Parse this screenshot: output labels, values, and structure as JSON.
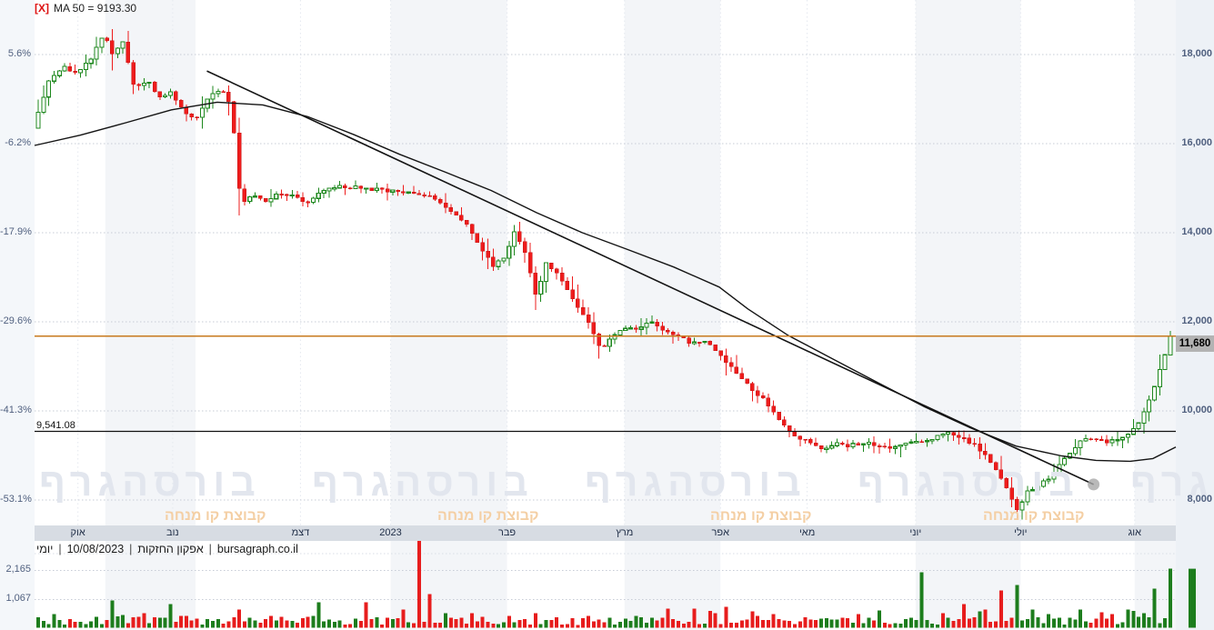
{
  "title": {
    "marker": "[X]",
    "text": "MA 50 = 9193.30"
  },
  "status_bar": {
    "separator": "|",
    "segments": [
      "יומי",
      "10/08/2023",
      "אפקון החזקות",
      "bursagraph.co.il"
    ]
  },
  "watermark": {
    "text": "בורסהגרף",
    "subtext": "קבוצת קו מנחה"
  },
  "colors": {
    "candle_up_stroke": "#1c871c",
    "candle_up_fill": "#ffffff",
    "candle_down": "#ee1c1c",
    "volume_up": "#1d7d1d",
    "volume_down": "#e71d1d",
    "current_price_line": "#c8791e",
    "reference_line": "#111111",
    "ma_line": "#141414",
    "trend_line": "#141414",
    "trend_dot": "#a8a8a8",
    "grid": "#c7ccd6",
    "band_shade": "#f3f5f8",
    "axis_text": "#50607f",
    "badge_bg": "#b3b3b3",
    "xband_bg": "#d7dce3"
  },
  "chart_data": {
    "type": "candlestick+volume",
    "instrument": "אפקון החזקות",
    "timeframe": "יומי",
    "as_of_date": "10/08/2023",
    "ma50_value": 9193.3,
    "last_price": 11680,
    "last_price_label": "11,680",
    "reference_line": 9541.08,
    "reference_line_label": "9,541.08",
    "candle_count": 215,
    "y_axis": {
      "ticks": [
        {
          "price": 18000,
          "price_label": "18,000",
          "pct_label": "5.6%"
        },
        {
          "price": 16000,
          "price_label": "16,000",
          "pct_label": "-6.2%"
        },
        {
          "price": 14000,
          "price_label": "14,000",
          "pct_label": "-17.9%"
        },
        {
          "price": 12000,
          "price_label": "12,000",
          "pct_label": "-29.6%"
        },
        {
          "price": 10000,
          "price_label": "10,000",
          "pct_label": "-41.3%"
        },
        {
          "price": 8000,
          "price_label": "8,000",
          "pct_label": "-53.1%"
        }
      ]
    },
    "volume_axis": {
      "ticks": [
        {
          "v": 2165,
          "label": "2,165"
        },
        {
          "v": 1067,
          "label": "1,067"
        }
      ]
    },
    "x_axis_months": [
      {
        "label": "אוק",
        "t": 0.038
      },
      {
        "label": "נוב",
        "t": 0.121
      },
      {
        "label": "דצמ",
        "t": 0.233
      },
      {
        "label": "2023",
        "t": 0.312
      },
      {
        "label": "פבר",
        "t": 0.414
      },
      {
        "label": "מרץ",
        "t": 0.517
      },
      {
        "label": "אפר",
        "t": 0.601
      },
      {
        "label": "מאי",
        "t": 0.677
      },
      {
        "label": "יוני",
        "t": 0.772
      },
      {
        "label": "יולי",
        "t": 0.864
      },
      {
        "label": "אוג",
        "t": 0.964
      }
    ],
    "shaded_bands": [
      [
        0.062,
        0.141
      ],
      [
        0.312,
        0.414
      ],
      [
        0.517,
        0.601
      ],
      [
        0.772,
        0.864
      ],
      [
        0.964,
        1.0
      ]
    ],
    "price_path": [
      [
        0.0,
        16700
      ],
      [
        0.01,
        17450
      ],
      [
        0.022,
        17750
      ],
      [
        0.034,
        17600
      ],
      [
        0.046,
        17900
      ],
      [
        0.054,
        18300
      ],
      [
        0.059,
        18430
      ],
      [
        0.065,
        18020
      ],
      [
        0.075,
        18260
      ],
      [
        0.085,
        17250
      ],
      [
        0.097,
        17420
      ],
      [
        0.107,
        17020
      ],
      [
        0.117,
        17160
      ],
      [
        0.129,
        16720
      ],
      [
        0.139,
        16520
      ],
      [
        0.149,
        17000
      ],
      [
        0.161,
        17210
      ],
      [
        0.171,
        16900
      ],
      [
        0.176,
        15150
      ],
      [
        0.181,
        14680
      ],
      [
        0.189,
        14860
      ],
      [
        0.201,
        14700
      ],
      [
        0.213,
        14900
      ],
      [
        0.225,
        14840
      ],
      [
        0.237,
        14620
      ],
      [
        0.249,
        14900
      ],
      [
        0.265,
        15060
      ],
      [
        0.285,
        15010
      ],
      [
        0.305,
        14960
      ],
      [
        0.325,
        14900
      ],
      [
        0.345,
        14840
      ],
      [
        0.361,
        14560
      ],
      [
        0.377,
        14240
      ],
      [
        0.389,
        13720
      ],
      [
        0.401,
        13260
      ],
      [
        0.411,
        13420
      ],
      [
        0.421,
        14040
      ],
      [
        0.431,
        13500
      ],
      [
        0.441,
        12420
      ],
      [
        0.447,
        13380
      ],
      [
        0.461,
        13000
      ],
      [
        0.474,
        12430
      ],
      [
        0.487,
        11920
      ],
      [
        0.497,
        11380
      ],
      [
        0.506,
        11620
      ],
      [
        0.517,
        11900
      ],
      [
        0.529,
        11840
      ],
      [
        0.541,
        12040
      ],
      [
        0.551,
        11810
      ],
      [
        0.565,
        11690
      ],
      [
        0.577,
        11520
      ],
      [
        0.589,
        11560
      ],
      [
        0.601,
        11300
      ],
      [
        0.613,
        10960
      ],
      [
        0.625,
        10620
      ],
      [
        0.637,
        10340
      ],
      [
        0.647,
        10060
      ],
      [
        0.658,
        9690
      ],
      [
        0.668,
        9400
      ],
      [
        0.679,
        9310
      ],
      [
        0.692,
        9160
      ],
      [
        0.705,
        9260
      ],
      [
        0.716,
        9210
      ],
      [
        0.728,
        9290
      ],
      [
        0.74,
        9240
      ],
      [
        0.752,
        9160
      ],
      [
        0.764,
        9260
      ],
      [
        0.776,
        9310
      ],
      [
        0.788,
        9340
      ],
      [
        0.796,
        9460
      ],
      [
        0.807,
        9490
      ],
      [
        0.818,
        9380
      ],
      [
        0.828,
        9210
      ],
      [
        0.84,
        8890
      ],
      [
        0.851,
        8500
      ],
      [
        0.858,
        8060
      ],
      [
        0.866,
        7740
      ],
      [
        0.874,
        8240
      ],
      [
        0.884,
        8310
      ],
      [
        0.894,
        8520
      ],
      [
        0.904,
        8890
      ],
      [
        0.914,
        9090
      ],
      [
        0.922,
        9370
      ],
      [
        0.932,
        9400
      ],
      [
        0.943,
        9310
      ],
      [
        0.954,
        9360
      ],
      [
        0.964,
        9490
      ],
      [
        0.974,
        9780
      ],
      [
        0.984,
        10420
      ],
      [
        0.992,
        11020
      ],
      [
        1.0,
        11680
      ]
    ],
    "ma50_path": [
      [
        0.0,
        15960
      ],
      [
        0.04,
        16190
      ],
      [
        0.08,
        16470
      ],
      [
        0.12,
        16760
      ],
      [
        0.16,
        16930
      ],
      [
        0.2,
        16870
      ],
      [
        0.24,
        16600
      ],
      [
        0.28,
        16200
      ],
      [
        0.32,
        15760
      ],
      [
        0.36,
        15360
      ],
      [
        0.4,
        14950
      ],
      [
        0.44,
        14450
      ],
      [
        0.48,
        14000
      ],
      [
        0.52,
        13620
      ],
      [
        0.56,
        13230
      ],
      [
        0.6,
        12780
      ],
      [
        0.625,
        12290
      ],
      [
        0.66,
        11700
      ],
      [
        0.7,
        11160
      ],
      [
        0.74,
        10620
      ],
      [
        0.78,
        10090
      ],
      [
        0.82,
        9620
      ],
      [
        0.86,
        9210
      ],
      [
        0.9,
        8990
      ],
      [
        0.93,
        8890
      ],
      [
        0.96,
        8870
      ],
      [
        0.98,
        8930
      ],
      [
        1.0,
        9190
      ]
    ],
    "trendline": {
      "from": {
        "t": 0.151,
        "p": 17630
      },
      "to": {
        "t": 0.928,
        "p": 8350
      }
    },
    "volume_spikes": [
      [
        0.064,
        1030,
        "g"
      ],
      [
        0.076,
        480,
        "g"
      ],
      [
        0.087,
        420,
        "r"
      ],
      [
        0.094,
        550,
        "r"
      ],
      [
        0.107,
        380,
        "g"
      ],
      [
        0.117,
        900,
        "g"
      ],
      [
        0.126,
        450,
        "r"
      ],
      [
        0.176,
        690,
        "r"
      ],
      [
        0.205,
        450,
        "r"
      ],
      [
        0.249,
        960,
        "g"
      ],
      [
        0.292,
        960,
        "r"
      ],
      [
        0.323,
        690,
        "r"
      ],
      [
        0.337,
        3370,
        "r"
      ],
      [
        0.347,
        1270,
        "r"
      ],
      [
        0.361,
        550,
        "g"
      ],
      [
        0.417,
        450,
        "r"
      ],
      [
        0.441,
        550,
        "r"
      ],
      [
        0.487,
        450,
        "r"
      ],
      [
        0.529,
        450,
        "g"
      ],
      [
        0.553,
        380,
        "r"
      ],
      [
        0.579,
        720,
        "r"
      ],
      [
        0.609,
        790,
        "r"
      ],
      [
        0.633,
        620,
        "r"
      ],
      [
        0.649,
        520,
        "r"
      ],
      [
        0.69,
        340,
        "g"
      ],
      [
        0.742,
        650,
        "g"
      ],
      [
        0.779,
        2100,
        "g"
      ],
      [
        0.8,
        550,
        "r"
      ],
      [
        0.818,
        890,
        "r"
      ],
      [
        0.83,
        620,
        "g"
      ],
      [
        0.851,
        1410,
        "r"
      ],
      [
        0.864,
        1610,
        "g"
      ],
      [
        0.88,
        690,
        "g"
      ],
      [
        0.891,
        520,
        "g"
      ],
      [
        0.922,
        690,
        "g"
      ],
      [
        0.936,
        340,
        "r"
      ],
      [
        0.95,
        520,
        "r"
      ],
      [
        0.961,
        690,
        "g"
      ],
      [
        0.972,
        410,
        "g"
      ],
      [
        0.988,
        1480,
        "g"
      ],
      [
        1.0,
        2230,
        "g"
      ]
    ],
    "margin_volume_bar": {
      "v": 2230,
      "c": "g"
    }
  }
}
